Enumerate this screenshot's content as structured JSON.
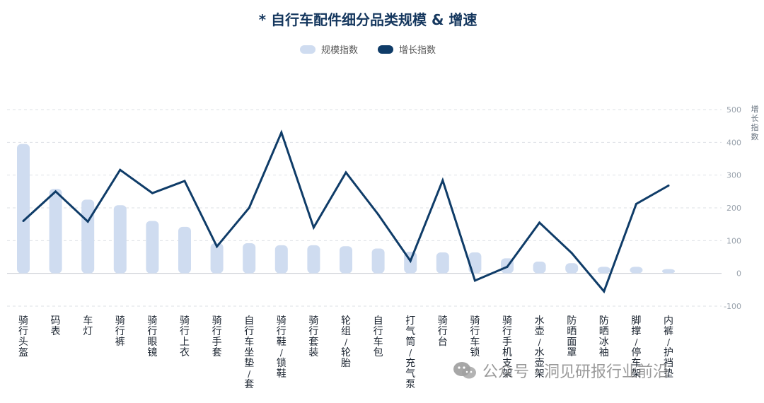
{
  "chart_data": {
    "type": "bar+line",
    "title": "* 自行车配件细分品类规模 & 增速",
    "categories": [
      "骑行头盔",
      "码表",
      "车灯",
      "骑行裤",
      "骑行眼镜",
      "骑行上衣",
      "骑行手套",
      "自行车坐垫/套",
      "骑行鞋/锁鞋",
      "骑行套装",
      "轮组/轮胎",
      "自行车包",
      "打气筒/充气泵",
      "骑行台",
      "骑行车锁",
      "骑行手机支架",
      "水壶/水壶架",
      "防晒面罩",
      "防晒冰袖",
      "脚撑/停车架",
      "内裤/护裆垫"
    ],
    "series": [
      {
        "name": "规模指数",
        "type": "bar",
        "color": "#cfdcf0",
        "values": [
          395,
          258,
          225,
          208,
          160,
          142,
          92,
          92,
          86,
          86,
          83,
          76,
          66,
          64,
          64,
          46,
          36,
          31,
          20,
          20,
          13
        ]
      },
      {
        "name": "增长指数",
        "type": "line",
        "color": "#0f3c68",
        "values": [
          160,
          250,
          158,
          316,
          245,
          282,
          82,
          200,
          430,
          140,
          308,
          180,
          38,
          284,
          -22,
          20,
          155,
          62,
          -55,
          212,
          268
        ]
      }
    ],
    "y_right_label": "增长指数",
    "ylim": [
      -100,
      500
    ],
    "yticks": [
      -100,
      0,
      100,
      200,
      300,
      400,
      500
    ],
    "grid": true,
    "legend_position": "top-center"
  },
  "watermark": {
    "text": "公众号 · 洞见研报行业前沿"
  }
}
